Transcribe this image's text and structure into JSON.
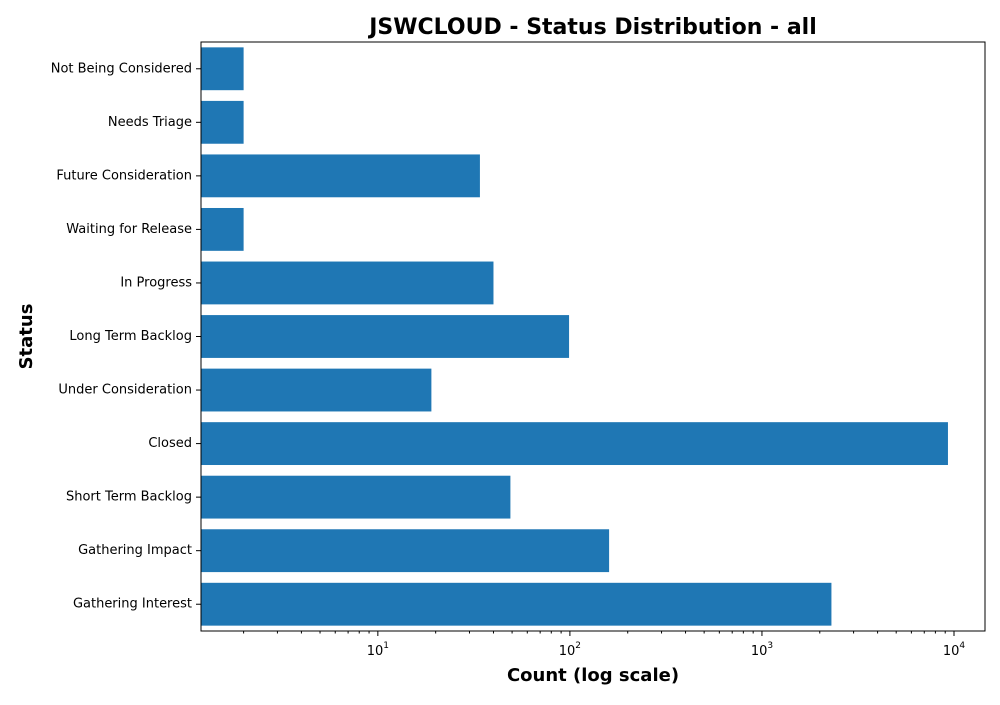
{
  "chart_data": {
    "type": "bar",
    "orientation": "horizontal",
    "title": "JSWCLOUD - Status Distribution - all",
    "xlabel": "Count (log scale)",
    "ylabel": "Status",
    "x_scale": "log",
    "xlim": [
      1.2,
      14500
    ],
    "x_ticks": [
      {
        "value": 10,
        "base": "10",
        "exp": "1"
      },
      {
        "value": 100,
        "base": "10",
        "exp": "2"
      },
      {
        "value": 1000,
        "base": "10",
        "exp": "3"
      },
      {
        "value": 10000,
        "base": "10",
        "exp": "4"
      }
    ],
    "categories": [
      "Not Being Considered",
      "Needs Triage",
      "Future Consideration",
      "Waiting for Release",
      "In Progress",
      "Long Term Backlog",
      "Under Consideration",
      "Closed",
      "Short Term Backlog",
      "Gathering Impact",
      "Gathering Interest"
    ],
    "values": [
      2,
      2,
      34,
      2,
      40,
      99,
      19,
      9300,
      49,
      160,
      2300
    ],
    "bar_color": "#1f77b4",
    "grid": false,
    "legend": "none"
  }
}
